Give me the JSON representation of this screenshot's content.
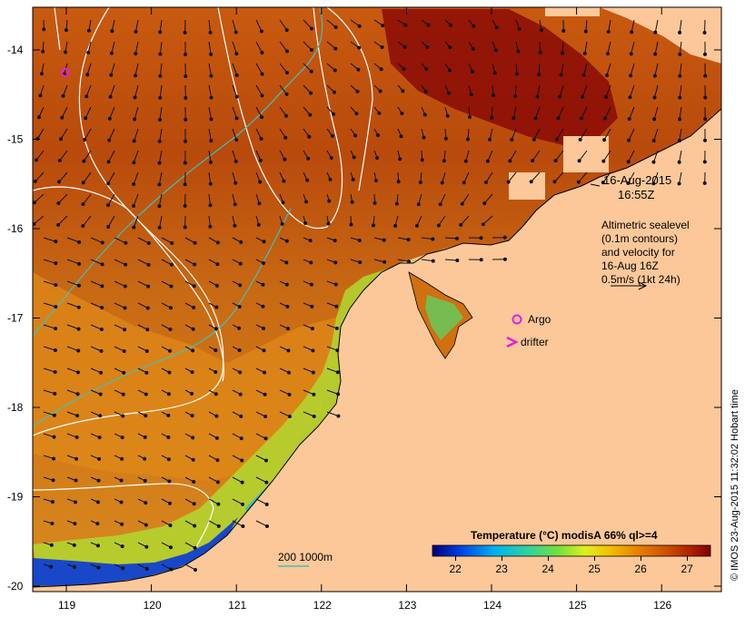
{
  "map": {
    "lat_labels": [
      "-14",
      "-15",
      "-16",
      "-17",
      "-18",
      "-19",
      "-20"
    ],
    "lon_labels": [
      "119",
      "120",
      "121",
      "122",
      "123",
      "124",
      "125",
      "126"
    ],
    "land_color": "#fcc89a",
    "coast_color": "#000000"
  },
  "annotation": {
    "date": "16-Aug-2015",
    "time": "16:55Z",
    "altimetry_lines": [
      "Altimetric sealevel",
      "(0.1m contours)",
      "and velocity for",
      "16-Aug 16Z",
      "0.5m/s (1kt 24h)"
    ]
  },
  "legend": {
    "argo_label": "Argo",
    "drifter_label": "drifter",
    "bathy_label": "200  1000m",
    "argo_color": "#e020e0",
    "bathy_color": "#40c0c0"
  },
  "colorbar": {
    "title": "Temperature (°C) modisA 66% ql>=4",
    "ticks": [
      "22",
      "23",
      "24",
      "25",
      "26",
      "27"
    ],
    "min": 21.5,
    "max": 27.5,
    "colors": [
      "#00007a",
      "#0040e0",
      "#00b0f0",
      "#30d0a0",
      "#70e040",
      "#e0f020",
      "#f0c000",
      "#e88000",
      "#d05000",
      "#b02000",
      "#800000"
    ]
  },
  "credit": "© IMOS 23-Aug-2015 11:32:02 Hobart time"
}
